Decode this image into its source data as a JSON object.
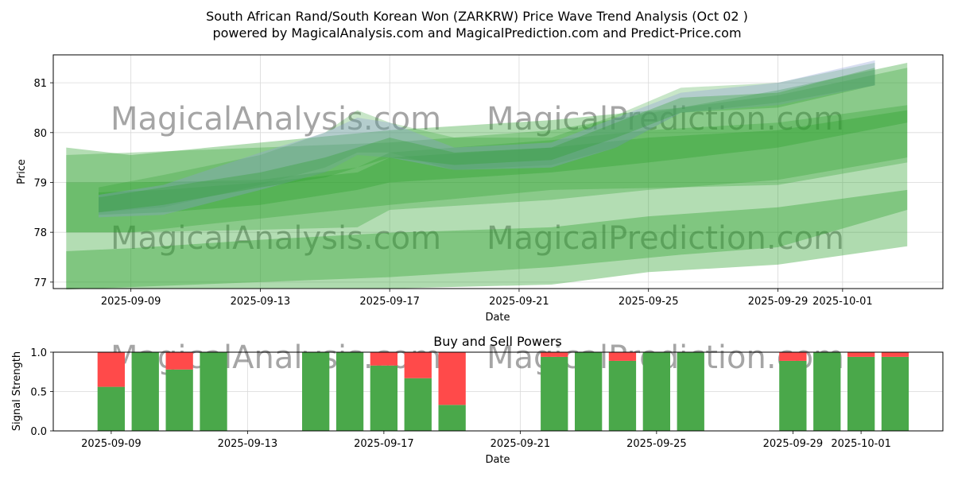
{
  "title_line1": "South African Rand/South Korean Won (ZARKRW) Price Wave Trend Analysis (Oct 02 )",
  "title_line2": "powered by MagicalAnalysis.com and MagicalPrediction.com and Predict-Price.com",
  "watermark_left": "MagicalAnalysis.com",
  "watermark_right": "MagicalPrediction.com",
  "colors": {
    "band": "#2ca02c",
    "band_blue": "#8c9fd6",
    "buy": "#4aa84a",
    "sell": "#ff4a4a"
  },
  "chart_data": [
    {
      "type": "area",
      "title": "",
      "xlabel": "Date",
      "ylabel": "Price",
      "xlim": [
        "2025-09-06.6",
        "2025-10-04.1"
      ],
      "ylim": [
        76.87,
        81.56
      ],
      "grid": true,
      "x_ticks": [
        "2025-09-09",
        "2025-09-13",
        "2025-09-17",
        "2025-09-21",
        "2025-09-25",
        "2025-09-29",
        "2025-10-01"
      ],
      "y_ticks": [
        77,
        78,
        79,
        80,
        81
      ],
      "bands": [
        {
          "name": "wide-bottom",
          "color": "green",
          "x": [
            "2025-09-07",
            "2025-09-09",
            "2025-09-17",
            "2025-09-22",
            "2025-09-26",
            "2025-09-29",
            "2025-10-03"
          ],
          "upper": [
            79.7,
            79.55,
            80.05,
            80.25,
            80.5,
            80.85,
            81.4
          ],
          "lower": [
            76.85,
            76.9,
            77.1,
            77.3,
            77.55,
            77.7,
            78.45
          ]
        },
        {
          "name": "wide-top",
          "color": "green",
          "x": [
            "2025-09-07",
            "2025-09-09",
            "2025-09-17",
            "2025-09-22",
            "2025-09-26",
            "2025-09-29",
            "2025-10-03"
          ],
          "upper": [
            79.55,
            79.6,
            79.8,
            80.05,
            80.5,
            80.75,
            81.3
          ],
          "lower": [
            78.0,
            78.0,
            78.55,
            78.85,
            78.9,
            78.95,
            79.4
          ]
        },
        {
          "name": "outer-lower",
          "color": "green",
          "x": [
            "2025-09-07",
            "2025-09-09",
            "2025-09-13",
            "2025-09-17",
            "2025-09-22",
            "2025-09-25",
            "2025-09-29",
            "2025-10-03"
          ],
          "upper": [
            77.62,
            77.68,
            77.85,
            77.99,
            78.1,
            78.32,
            78.5,
            78.85
          ],
          "lower": [
            76.87,
            76.87,
            76.87,
            76.87,
            76.95,
            77.2,
            77.35,
            77.72
          ]
        },
        {
          "name": "mid-band",
          "color": "green",
          "x": [
            "2025-09-07",
            "2025-09-09",
            "2025-09-13",
            "2025-09-16",
            "2025-09-17",
            "2025-09-22",
            "2025-09-25",
            "2025-09-29",
            "2025-10-03"
          ],
          "upper": [
            79.0,
            79.0,
            79.05,
            79.3,
            79.6,
            79.85,
            80.05,
            80.2,
            80.55
          ],
          "lower": [
            78.0,
            78.0,
            78.05,
            78.1,
            78.45,
            78.65,
            78.85,
            79.05,
            79.5
          ]
        },
        {
          "name": "core-band",
          "color": "green",
          "x": [
            "2025-09-08",
            "2025-09-10",
            "2025-09-13",
            "2025-09-16",
            "2025-09-17",
            "2025-09-22",
            "2025-09-25",
            "2025-09-29",
            "2025-10-03"
          ],
          "upper": [
            78.8,
            78.85,
            79.0,
            79.2,
            79.5,
            79.7,
            79.9,
            80.05,
            80.45
          ],
          "lower": [
            78.35,
            78.4,
            78.55,
            78.85,
            79.0,
            79.2,
            79.4,
            79.7,
            80.2
          ]
        },
        {
          "name": "upper-band",
          "color": "green",
          "x": [
            "2025-09-08",
            "2025-09-10",
            "2025-09-13",
            "2025-09-15",
            "2025-09-16",
            "2025-09-17",
            "2025-09-19",
            "2025-09-22",
            "2025-09-24",
            "2025-09-26",
            "2025-09-29",
            "2025-10-02"
          ],
          "upper": [
            78.9,
            79.15,
            79.55,
            80.0,
            80.45,
            80.2,
            79.9,
            79.9,
            80.35,
            80.9,
            81.0,
            81.4
          ],
          "lower": [
            78.4,
            78.5,
            78.95,
            79.3,
            79.6,
            79.6,
            79.25,
            79.35,
            79.7,
            80.4,
            80.6,
            80.95
          ]
        },
        {
          "name": "blue-band",
          "color": "blue",
          "x": [
            "2025-09-08",
            "2025-09-10",
            "2025-09-13",
            "2025-09-15",
            "2025-09-16",
            "2025-09-17",
            "2025-09-19",
            "2025-09-22",
            "2025-09-24",
            "2025-09-26",
            "2025-09-29",
            "2025-10-02"
          ],
          "upper": [
            78.75,
            78.95,
            79.6,
            80.0,
            80.3,
            80.2,
            79.7,
            79.8,
            80.3,
            80.8,
            81.0,
            81.45
          ],
          "lower": [
            78.3,
            78.35,
            78.85,
            79.2,
            79.55,
            79.5,
            79.25,
            79.3,
            79.7,
            80.4,
            80.55,
            80.95
          ]
        },
        {
          "name": "inner-band",
          "color": "green",
          "x": [
            "2025-09-08",
            "2025-09-10",
            "2025-09-13",
            "2025-09-15",
            "2025-09-17",
            "2025-09-19",
            "2025-09-22",
            "2025-09-24",
            "2025-09-26",
            "2025-09-29",
            "2025-10-02"
          ],
          "upper": [
            78.7,
            78.9,
            79.2,
            79.5,
            79.9,
            79.6,
            79.7,
            80.2,
            80.7,
            80.8,
            81.3
          ],
          "lower": [
            78.4,
            78.55,
            78.9,
            79.1,
            79.5,
            79.35,
            79.45,
            79.9,
            80.4,
            80.5,
            80.95
          ]
        }
      ]
    },
    {
      "type": "bar",
      "title": "Buy and Sell Powers",
      "xlabel": "Date",
      "ylabel": "Signal Strength",
      "ylim": [
        0,
        1
      ],
      "y_ticks": [
        "0.0",
        "0.5",
        "1.0"
      ],
      "x_ticks": [
        "2025-09-09",
        "2025-09-13",
        "2025-09-17",
        "2025-09-21",
        "2025-09-25",
        "2025-09-29",
        "2025-10-01"
      ],
      "categories": [
        "2025-09-09",
        "2025-09-10",
        "2025-09-11",
        "2025-09-12",
        "2025-09-15",
        "2025-09-16",
        "2025-09-17",
        "2025-09-18",
        "2025-09-19",
        "2025-09-22",
        "2025-09-23",
        "2025-09-24",
        "2025-09-25",
        "2025-09-26",
        "2025-09-29",
        "2025-09-30",
        "2025-10-01",
        "2025-10-02"
      ],
      "series": [
        {
          "name": "Buy",
          "values": [
            0.56,
            1.0,
            0.78,
            1.0,
            1.0,
            1.0,
            0.83,
            0.67,
            0.33,
            0.94,
            1.0,
            0.89,
            1.0,
            1.0,
            0.89,
            1.0,
            0.94,
            0.94
          ]
        },
        {
          "name": "Sell",
          "values": [
            0.44,
            0.0,
            0.22,
            0.0,
            0.0,
            0.0,
            0.17,
            0.33,
            0.67,
            0.06,
            0.0,
            0.11,
            0.0,
            0.0,
            0.11,
            0.0,
            0.06,
            0.06
          ]
        }
      ]
    }
  ]
}
